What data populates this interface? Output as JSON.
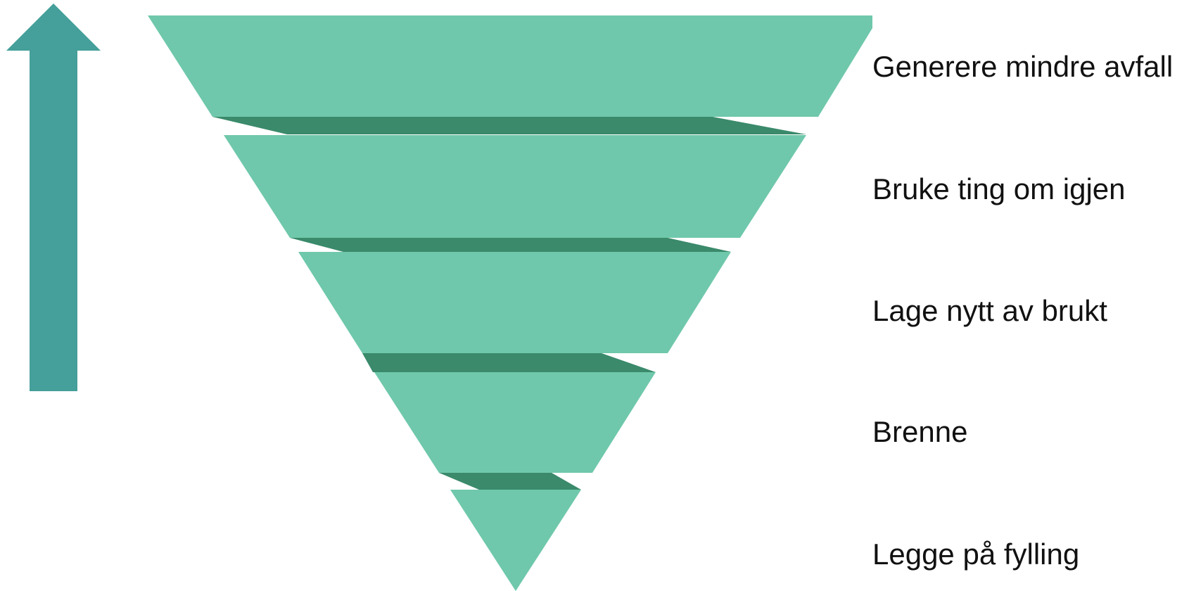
{
  "colors": {
    "arrow": "#459f9a",
    "band_fill": "#6fc8ab",
    "band_shadow": "#3a8a6b",
    "text": "#111111"
  },
  "arrow": {
    "direction": "up",
    "icon": "up-arrow-icon"
  },
  "levels": [
    {
      "label": "Generere mindre avfall"
    },
    {
      "label": "Bruke ting om igjen"
    },
    {
      "label": "Lage nytt av brukt"
    },
    {
      "label": "Brenne"
    },
    {
      "label": "Legge på fylling"
    }
  ]
}
